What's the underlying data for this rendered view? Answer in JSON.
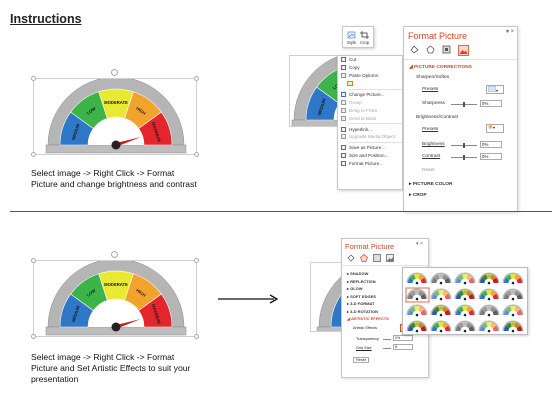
{
  "title": "Instructions",
  "caption1": [
    "Select image -> Right Click -> Format",
    "Picture and change brightness and contrast"
  ],
  "caption2": [
    "Select image -> Right Click -> Format",
    "Picture and Set Artistic Effects to suit your",
    "presentation"
  ],
  "gauge": {
    "segments": [
      "MEDIUM",
      "LOW",
      "MODERATE",
      "HIGH",
      "MAXIMUM"
    ],
    "colors": [
      "#2e78c7",
      "#3cb44a",
      "#e9e832",
      "#f2a32c",
      "#e2262b"
    ],
    "needle_color": "#c62020"
  },
  "mini_toolbar": {
    "style": "Style",
    "crop": "Crop"
  },
  "context_menu": {
    "items": [
      {
        "label": "Cut",
        "disabled": false
      },
      {
        "label": "Copy",
        "disabled": false
      },
      {
        "label": "Paste Options:",
        "disabled": false
      },
      {
        "label": "",
        "disabled": false
      },
      {
        "label": "Change Picture...",
        "disabled": false
      },
      {
        "label": "Group",
        "disabled": true
      },
      {
        "label": "Bring to Front",
        "disabled": true
      },
      {
        "label": "Send to Back",
        "disabled": true
      },
      {
        "label": "Hyperlink...",
        "disabled": false
      },
      {
        "label": "Upgrade Media Object",
        "disabled": true
      },
      {
        "label": "Save as Picture...",
        "disabled": false
      },
      {
        "label": "Size and Position...",
        "disabled": false
      },
      {
        "label": "Format Picture...",
        "disabled": false
      }
    ]
  },
  "pane1": {
    "title": "Format Picture",
    "section_open": "PICTURE CORRECTIONS",
    "sharpen_title": "Sharpen/Soften",
    "presets": "Presets",
    "sharpness": "Sharpness",
    "sharpness_value": "0%",
    "bc_title": "Brightness/Contrast",
    "presets2": "Presets",
    "brightness": "Brightness",
    "brightness_value": "0%",
    "contrast": "Contrast",
    "contrast_value": "0%",
    "reset": "Reset",
    "section_color": "PICTURE COLOR",
    "section_crop": "CROP"
  },
  "pane2": {
    "title": "Format Picture",
    "sections": [
      "SHADOW",
      "REFLECTION",
      "GLOW",
      "SOFT EDGES",
      "3-D FORMAT",
      "3-D ROTATION"
    ],
    "section_open": "ARTISTIC EFFECTS",
    "artistic_effects": "Artistic Effects",
    "transparency": "Transparency",
    "transparency_value": "0%",
    "grid_size": "Grid Size",
    "grid_size_value": "8",
    "reset": "Reset"
  }
}
